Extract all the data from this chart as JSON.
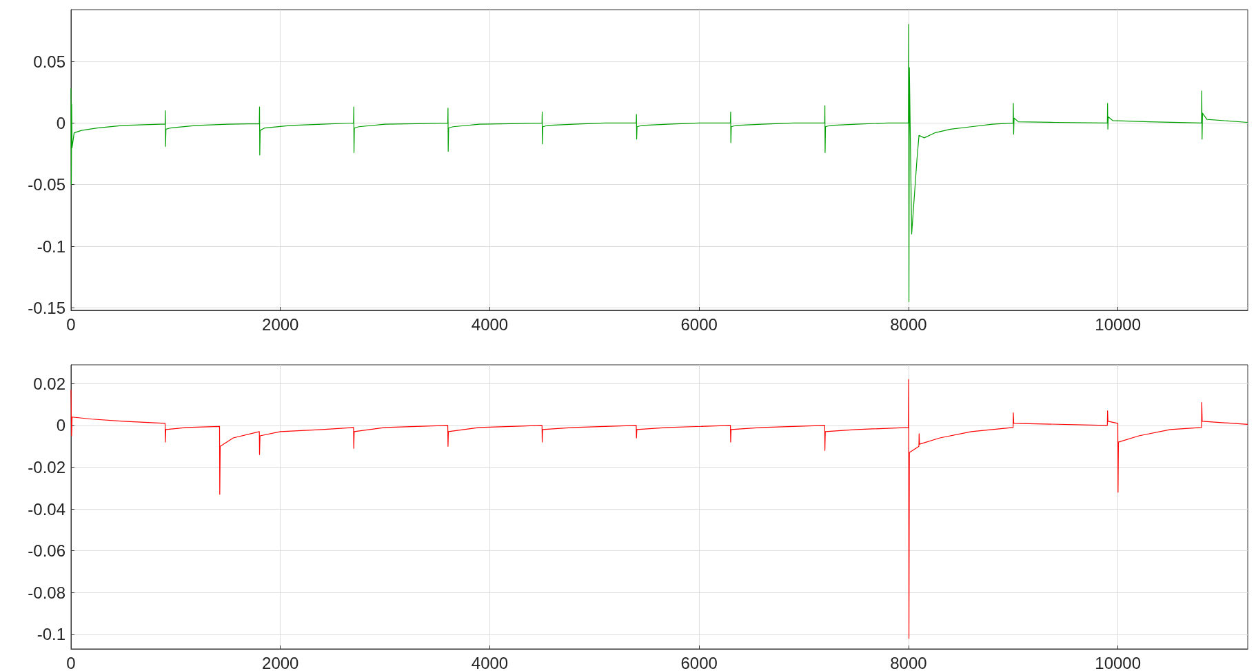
{
  "chart_data": [
    {
      "type": "line",
      "xlim": [
        0,
        11240
      ],
      "xticks": [
        0,
        2000,
        4000,
        6000,
        8000,
        10000
      ],
      "ylim": [
        -0.152,
        0.092
      ],
      "yticks": [
        -0.15,
        -0.1,
        -0.05,
        0,
        0.05
      ],
      "grid": true,
      "series": [
        {
          "color": "#00a000",
          "x": [
            0,
            3,
            6,
            10,
            30,
            100,
            250,
            500,
            850,
            899,
            901,
            903,
            907,
            950,
            1200,
            1500,
            1799,
            1801,
            1803,
            1807,
            1850,
            2100,
            2400,
            2699,
            2701,
            2703,
            2707,
            2750,
            3000,
            3300,
            3599,
            3601,
            3603,
            3607,
            3650,
            3900,
            4200,
            4499,
            4501,
            4503,
            4507,
            4550,
            4800,
            5100,
            5399,
            5401,
            5403,
            5407,
            5450,
            5700,
            6000,
            6299,
            6301,
            6303,
            6307,
            6350,
            6600,
            6900,
            7199,
            7201,
            7203,
            7207,
            7250,
            7500,
            7800,
            7999,
            8001,
            8004,
            8008,
            8030,
            8080,
            8100,
            8150,
            8250,
            8400,
            8600,
            8800,
            8999,
            9001,
            9004,
            9008,
            9050,
            9400,
            9899,
            9901,
            9904,
            9908,
            9950,
            10300,
            10799,
            10801,
            10804,
            10808,
            10850,
            11240
          ],
          "values": [
            0.028,
            -0.05,
            0.015,
            -0.02,
            -0.008,
            -0.006,
            -0.004,
            -0.002,
            -0.001,
            -0.001,
            0.01,
            -0.019,
            -0.005,
            -0.004,
            -0.002,
            -0.001,
            -0.0005,
            0.013,
            -0.026,
            -0.006,
            -0.004,
            -0.002,
            -0.001,
            0,
            0.013,
            -0.024,
            -0.004,
            -0.003,
            -0.001,
            -0.0005,
            0,
            0.012,
            -0.023,
            -0.004,
            -0.003,
            -0.001,
            -0.0005,
            0,
            0.009,
            -0.017,
            -0.003,
            -0.002,
            -0.001,
            0,
            0,
            0.007,
            -0.013,
            -0.003,
            -0.002,
            -0.001,
            0,
            0,
            0.009,
            -0.016,
            -0.003,
            -0.002,
            -0.001,
            0,
            0,
            0.014,
            -0.024,
            -0.003,
            -0.002,
            -0.001,
            0,
            0,
            0.08,
            -0.145,
            0.045,
            -0.09,
            -0.03,
            -0.01,
            -0.012,
            -0.008,
            -0.005,
            -0.003,
            -0.001,
            0,
            0.016,
            -0.009,
            0.004,
            0.001,
            0.0005,
            0,
            0.016,
            -0.005,
            0.005,
            0.002,
            0.001,
            0,
            0.026,
            -0.013,
            0.008,
            0.003,
            0.0005
          ]
        }
      ]
    },
    {
      "type": "line",
      "xlim": [
        0,
        11240
      ],
      "xticks": [
        0,
        2000,
        4000,
        6000,
        8000,
        10000
      ],
      "ylim": [
        -0.107,
        0.029
      ],
      "yticks": [
        -0.1,
        -0.08,
        -0.06,
        -0.04,
        -0.02,
        0,
        0.02
      ],
      "grid": true,
      "series": [
        {
          "color": "#ff0000",
          "x": [
            0,
            5,
            10,
            200,
            500,
            899,
            901,
            905,
            1100,
            1419,
            1421,
            1425,
            1550,
            1799,
            1801,
            1805,
            2000,
            2400,
            2699,
            2701,
            2705,
            3000,
            3599,
            3601,
            3605,
            3900,
            4499,
            4501,
            4505,
            4800,
            5399,
            5401,
            5405,
            5700,
            6299,
            6301,
            6305,
            6600,
            7199,
            7201,
            7205,
            7500,
            7999,
            8001,
            8004,
            8008,
            8099,
            8101,
            8105,
            8300,
            8600,
            8999,
            9001,
            9005,
            9899,
            9901,
            9905,
            9999,
            10001,
            10005,
            10200,
            10500,
            10799,
            10801,
            10805,
            11240
          ],
          "values": [
            0.017,
            -0.005,
            0.004,
            0.003,
            0.002,
            0.001,
            -0.008,
            -0.002,
            -0.001,
            -0.0005,
            -0.033,
            -0.01,
            -0.006,
            -0.003,
            -0.014,
            -0.005,
            -0.003,
            -0.002,
            -0.001,
            -0.011,
            -0.003,
            -0.001,
            0,
            -0.01,
            -0.003,
            -0.001,
            0,
            -0.008,
            -0.002,
            -0.001,
            0,
            -0.006,
            -0.002,
            -0.001,
            0,
            -0.008,
            -0.002,
            -0.001,
            0,
            -0.012,
            -0.003,
            -0.002,
            -0.001,
            0.022,
            -0.102,
            -0.013,
            -0.01,
            -0.004,
            -0.009,
            -0.006,
            -0.003,
            -0.001,
            0.006,
            0.001,
            0,
            0.007,
            0.002,
            0.001,
            -0.032,
            -0.008,
            -0.005,
            -0.002,
            -0.001,
            0.011,
            0.002,
            0.0005
          ]
        }
      ]
    }
  ]
}
